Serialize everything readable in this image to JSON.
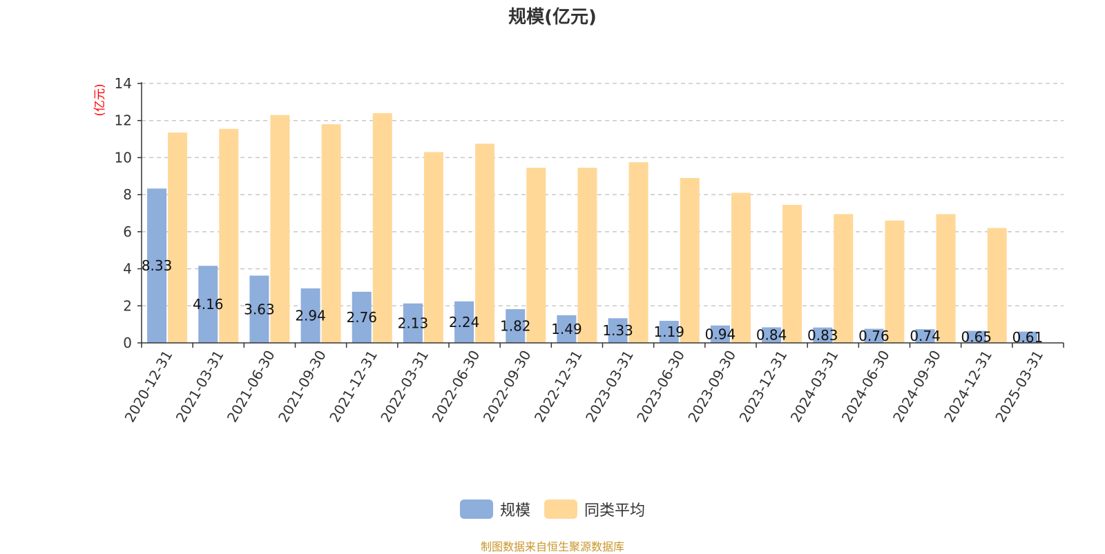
{
  "chart_data": {
    "type": "bar",
    "title": "规模(亿元)",
    "ylabel": "(亿元)",
    "xlabel": "",
    "ylim": [
      0,
      14
    ],
    "yticks": [
      0,
      2,
      4,
      6,
      8,
      10,
      12,
      14
    ],
    "grid": "horizontal-dashed",
    "legend_position": "bottom-center",
    "categories": [
      "2020-12-31",
      "2021-03-31",
      "2021-06-30",
      "2021-09-30",
      "2021-12-31",
      "2022-03-31",
      "2022-06-30",
      "2022-09-30",
      "2022-12-31",
      "2023-03-31",
      "2023-06-30",
      "2023-09-30",
      "2023-12-31",
      "2024-03-31",
      "2024-06-30",
      "2024-09-30",
      "2024-12-31",
      "2025-03-31"
    ],
    "series": [
      {
        "name": "规模",
        "color": "#8eaedc",
        "show_labels": true,
        "labels": [
          "8.33",
          "4.16",
          "3.63",
          "2.94",
          "2.76",
          "2.13",
          "2.24",
          "1.82",
          "1.49",
          "1.33",
          "1.19",
          "0.94",
          "0.84",
          "0.83",
          "0.76",
          "0.74",
          "0.65",
          "0.61"
        ],
        "values": [
          8.33,
          4.16,
          3.63,
          2.94,
          2.76,
          2.13,
          2.24,
          1.82,
          1.49,
          1.33,
          1.19,
          0.94,
          0.84,
          0.83,
          0.76,
          0.74,
          0.65,
          0.61
        ]
      },
      {
        "name": "同类平均",
        "color": "#ffd898",
        "show_labels": false,
        "values": [
          11.35,
          11.55,
          12.3,
          11.8,
          12.4,
          10.3,
          10.75,
          9.45,
          9.45,
          9.75,
          8.9,
          8.1,
          7.45,
          6.95,
          6.6,
          6.95,
          6.2,
          0
        ]
      }
    ],
    "source_note": "制图数据来自恒生聚源数据库",
    "source_note_color": "#c8962a",
    "ylabel_color": "#ff0000"
  }
}
